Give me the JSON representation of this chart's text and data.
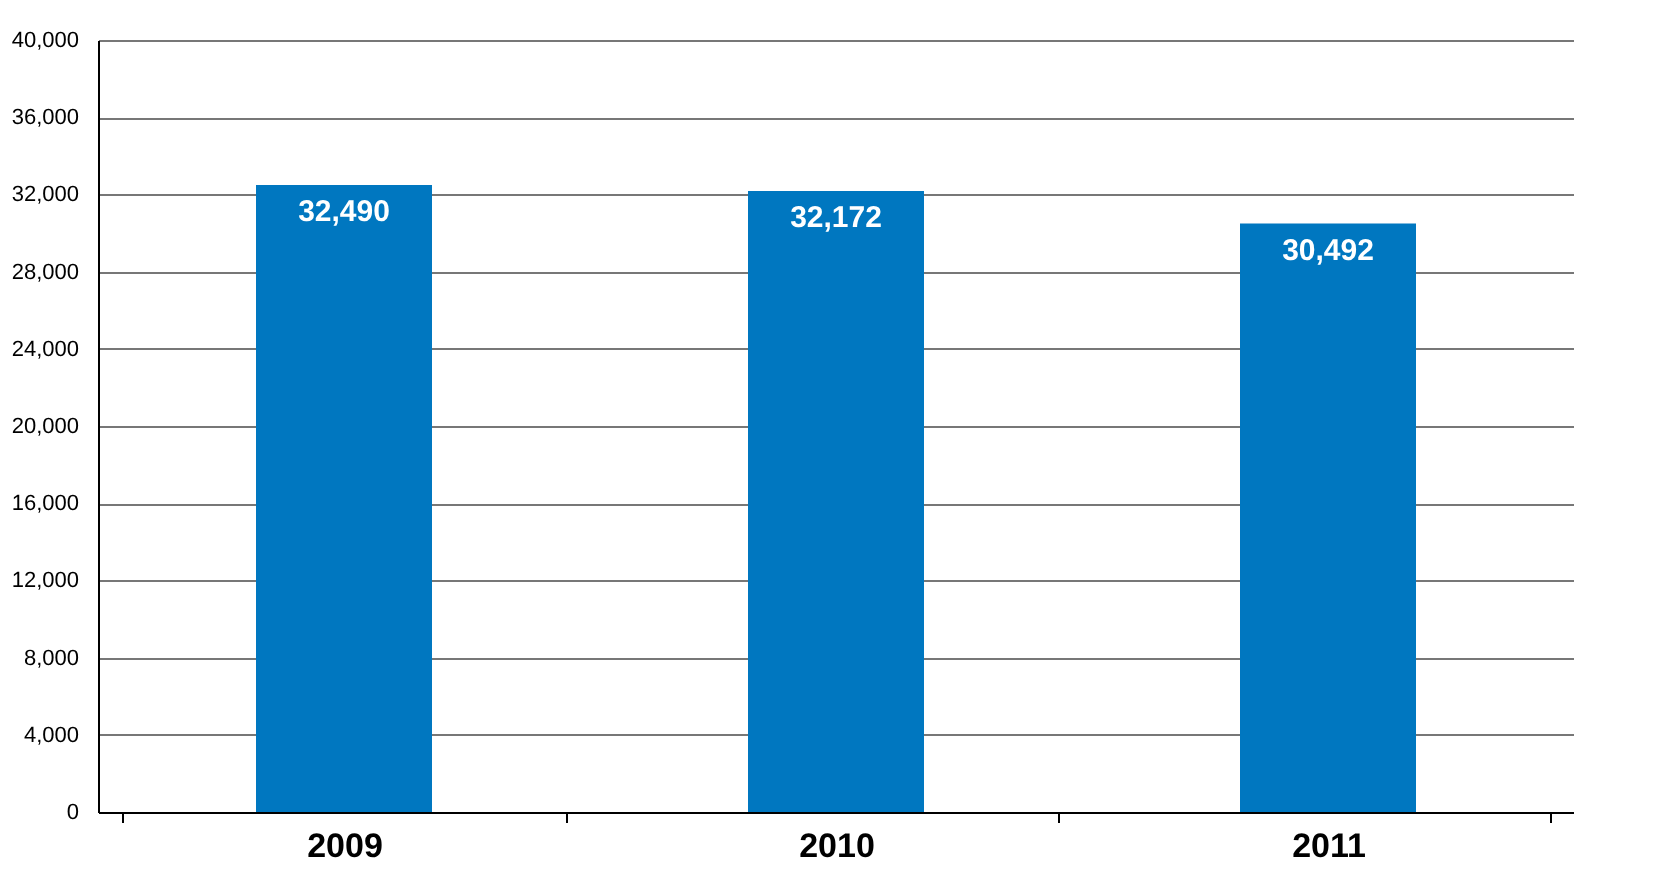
{
  "chart_data": {
    "type": "bar",
    "categories": [
      "2009",
      "2010",
      "2011"
    ],
    "values": [
      32490,
      32172,
      30492
    ],
    "value_labels": [
      "32,490",
      "32,172",
      "30,492"
    ],
    "color": "#0077c0",
    "ylim": [
      0,
      40000
    ],
    "yticks": [
      {
        "value": 0,
        "label": "0"
      },
      {
        "value": 4000,
        "label": "4,000"
      },
      {
        "value": 8000,
        "label": "8,000"
      },
      {
        "value": 12000,
        "label": "12,000"
      },
      {
        "value": 16000,
        "label": "16,000"
      },
      {
        "value": 20000,
        "label": "20,000"
      },
      {
        "value": 24000,
        "label": "24,000"
      },
      {
        "value": 28000,
        "label": "28,000"
      },
      {
        "value": 32000,
        "label": "32,000"
      },
      {
        "value": 36000,
        "label": "36,000"
      },
      {
        "value": 40000,
        "label": "40,000"
      }
    ],
    "grid": true,
    "data_labels": true
  }
}
